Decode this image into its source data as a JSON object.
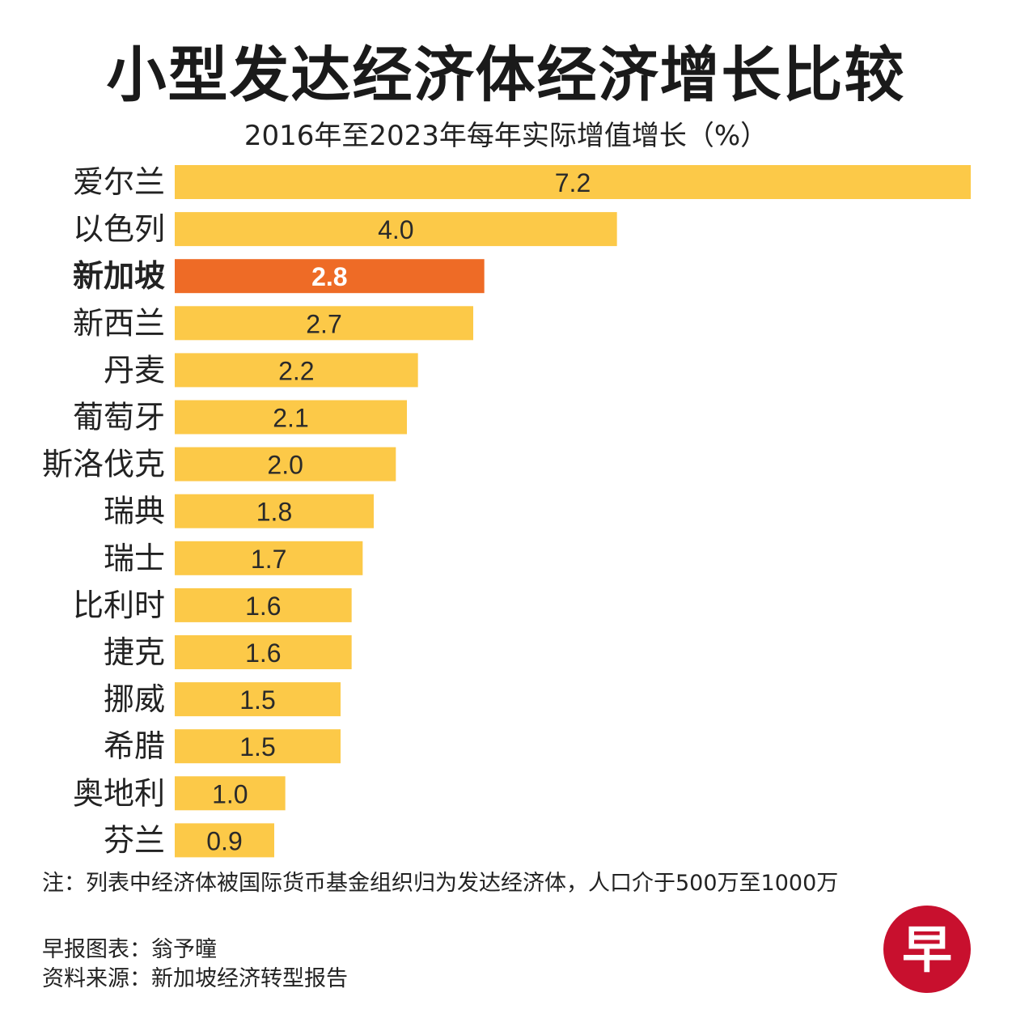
{
  "chart_data": {
    "type": "bar",
    "orientation": "horizontal",
    "title": "小型发达经济体经济增长比较",
    "subtitle": "2016年至2023年每年实际增值增长（%）",
    "categories": [
      "爱尔兰",
      "以色列",
      "新加坡",
      "新西兰",
      "丹麦",
      "葡萄牙",
      "斯洛伐克",
      "瑞典",
      "瑞士",
      "比利时",
      "捷克",
      "挪威",
      "希腊",
      "奥地利",
      "芬兰"
    ],
    "values": [
      7.2,
      4.0,
      2.8,
      2.7,
      2.2,
      2.1,
      2.0,
      1.8,
      1.7,
      1.6,
      1.6,
      1.5,
      1.5,
      1.0,
      0.9
    ],
    "value_labels": [
      "7.2",
      "4.0",
      "2.8",
      "2.7",
      "2.2",
      "2.1",
      "2.0",
      "1.8",
      "1.7",
      "1.6",
      "1.6",
      "1.5",
      "1.5",
      "1.0",
      "0.9"
    ],
    "highlight": "新加坡",
    "xlim": [
      0,
      7.2
    ],
    "grid": false,
    "legend": "none"
  },
  "colors": {
    "bar": "#FCC948",
    "highlight_bar": "#EE6B26",
    "highlight_text": "#ffffff",
    "logo": "#C8102E"
  },
  "note": "注：列表中经济体被国际货币基金组织归为发达经济体，人口介于500万至1000万",
  "credits": {
    "author": "早报图表：翁予曈",
    "source": "资料来源：新加坡经济转型报告"
  },
  "logo": {
    "icon": "zaobao-logo-icon",
    "glyph": "早"
  }
}
